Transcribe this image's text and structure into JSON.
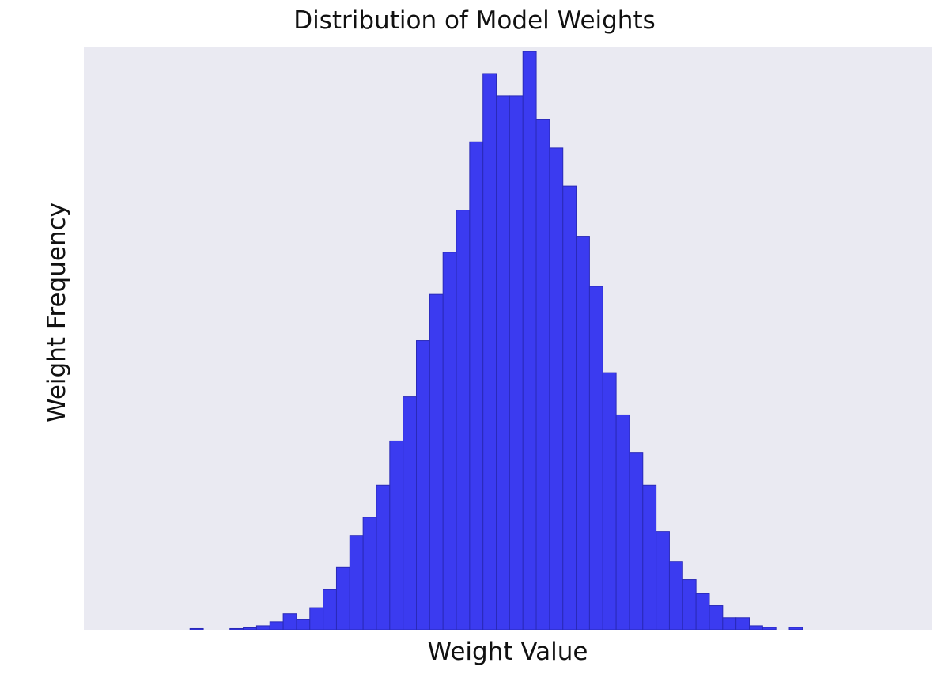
{
  "chart_data": {
    "type": "bar",
    "subtype": "histogram",
    "title": "Distribution of Model Weights",
    "xlabel": "Weight Value",
    "ylabel": "Weight Frequency",
    "x_ticks_visible": false,
    "y_ticks_visible": false,
    "grid": false,
    "legend": "none",
    "ylim": [
      0,
      145
    ],
    "bin_count": 55,
    "values": [
      0,
      0,
      0,
      0,
      0,
      0,
      0,
      0,
      0.3,
      0,
      0,
      0.3,
      0.5,
      1,
      2,
      4,
      2.5,
      5.5,
      10,
      15.5,
      23.5,
      28,
      36,
      47,
      58,
      72,
      83.5,
      94,
      104.5,
      121.5,
      138.5,
      133,
      133,
      144,
      127,
      120,
      110.5,
      98,
      85.5,
      64,
      53.5,
      44,
      36,
      24.5,
      17,
      12.5,
      9,
      6,
      3,
      3,
      1,
      0.6,
      0,
      0.6,
      0
    ],
    "colors": {
      "bar_fill": "#3b3bf0",
      "bar_edge": "#2a2ab8",
      "plot_bg": "#eaeaf2"
    }
  }
}
